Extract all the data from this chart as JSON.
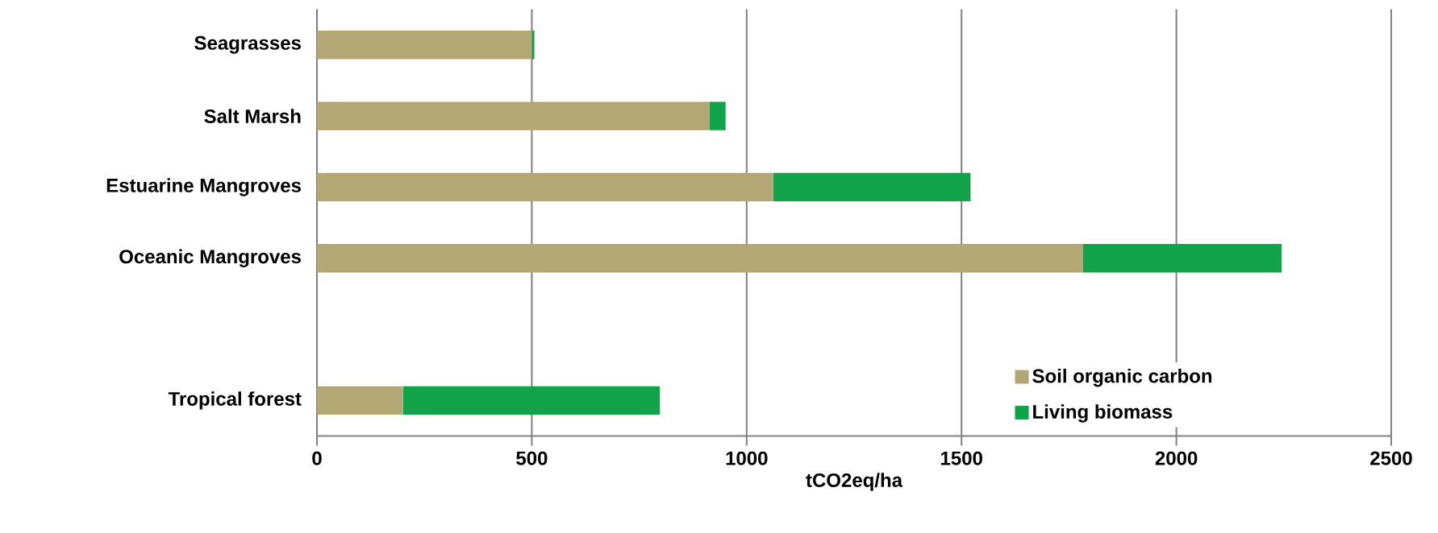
{
  "chart_data": {
    "type": "bar",
    "orientation": "horizontal",
    "stacked": true,
    "categories": [
      "Seagrasses",
      "Salt Marsh",
      "Estuarine Mangroves",
      "Oceanic Mangroves",
      null,
      "Tropical forest"
    ],
    "series": [
      {
        "name": "Soil organic carbon",
        "color": "#b3a775",
        "values": [
          500,
          913,
          1062,
          1783,
          null,
          200
        ]
      },
      {
        "name": "Living biomass",
        "color": "#12a34a",
        "values": [
          6,
          38,
          459,
          462,
          null,
          598
        ]
      }
    ],
    "xlim": [
      0,
      2500
    ],
    "xticks": [
      0,
      500,
      1000,
      1500,
      2000,
      2500
    ],
    "xlabel": "tCO2eq/ha",
    "grid": "x",
    "legend": "bottom right"
  }
}
